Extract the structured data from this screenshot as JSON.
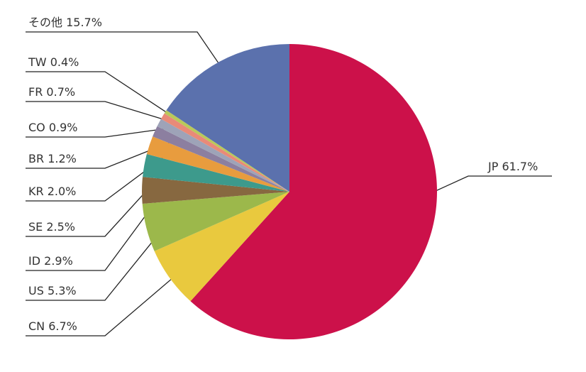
{
  "chart_data": {
    "type": "pie",
    "categories": [
      "JP",
      "CN",
      "US",
      "ID",
      "SE",
      "KR",
      "BR",
      "CO",
      "FR",
      "TW",
      "その他"
    ],
    "values": [
      61.7,
      6.7,
      5.3,
      2.9,
      2.5,
      2.0,
      1.2,
      0.9,
      0.7,
      0.4,
      15.7
    ],
    "value_labels": [
      "61.7%",
      "6.7%",
      "5.3%",
      "2.9%",
      "2.5%",
      "2.0%",
      "1.2%",
      "0.9%",
      "0.7%",
      "0.4%",
      "15.7%"
    ],
    "colors": [
      "#cc114a",
      "#e9c93e",
      "#9cb84b",
      "#876840",
      "#3d9a8c",
      "#e89c3e",
      "#8c7fa0",
      "#9ea3b8",
      "#e98a78",
      "#b9c95a",
      "#5b71ad"
    ]
  }
}
